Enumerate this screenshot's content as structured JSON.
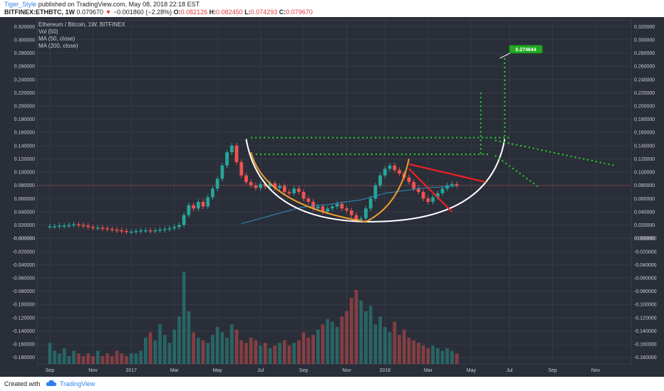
{
  "header": {
    "user": "Tiger_Style",
    "published": "published on TradingView.com, May 08, 2018 22:18 EST",
    "symbol": "BITFINEX:ETHBTC, 1W",
    "last": "0.079670",
    "change": "−0.001860 (−2.28%)",
    "o_label": "O:",
    "o_val": "0.082126",
    "h_label": "H:",
    "h_val": "0.082450",
    "l_label": "L:",
    "l_val": "0.074293",
    "c_label": "C:",
    "c_val": "0.079670"
  },
  "chart_info": {
    "title": "Ethereum / Bitcoin, 1W, BITFINEX",
    "vol": "Vol (50)",
    "ma50": "MA (50, close)",
    "ma200": "MA (200, close)"
  },
  "footer": {
    "created": "Created with",
    "brand": "TradingView"
  },
  "colors": {
    "background": "#2a2e39",
    "up": "#26a69a",
    "down": "#ef5350",
    "cup": "#ffffff",
    "arc": "#f0a030",
    "wedge": "#ff2020",
    "guide": "#22dd22",
    "ma": "#2f8fbf"
  },
  "chart_data": {
    "type": "candlestick",
    "ylim": [
      -0.19,
      0.33
    ],
    "y_ticks": [
      "0.320000",
      "0.300000",
      "0.280000",
      "0.260000",
      "0.240000",
      "0.220000",
      "0.200000",
      "0.180000",
      "0.160000",
      "0.140000",
      "0.120000",
      "0.100000",
      "0.080000",
      "0.060000",
      "0.040000",
      "0.020000",
      "0.000000",
      "-0.000000",
      "-0.020000",
      "-0.040000",
      "-0.060000",
      "-0.080000",
      "-0.100000",
      "-0.120000",
      "-0.140000",
      "-0.160000",
      "-0.180000"
    ],
    "y_tick_values": [
      0.32,
      0.3,
      0.28,
      0.26,
      0.24,
      0.22,
      0.2,
      0.18,
      0.16,
      0.14,
      0.12,
      0.1,
      0.08,
      0.06,
      0.04,
      0.02,
      0.0,
      -0.0,
      -0.02,
      -0.04,
      -0.06,
      -0.08,
      -0.1,
      -0.12,
      -0.14,
      -0.16,
      -0.18
    ],
    "x_ticks": [
      "Sep",
      "Nov",
      "2017",
      "Mar",
      "May",
      "Jul",
      "Sep",
      "Nov",
      "2018",
      "Mar",
      "May",
      "Jul",
      "Sep",
      "Nov"
    ],
    "x_tick_weeks": [
      0,
      9,
      17,
      26,
      35,
      44,
      53,
      62,
      70,
      79,
      88,
      96,
      105,
      114
    ],
    "current_price": 0.07967,
    "target_label": "0.274644",
    "target_value": 0.274644,
    "candles_close": [
      0.018,
      0.018,
      0.019,
      0.019,
      0.02,
      0.021,
      0.02,
      0.019,
      0.017,
      0.016,
      0.016,
      0.015,
      0.014,
      0.013,
      0.012,
      0.011,
      0.01,
      0.01,
      0.011,
      0.012,
      0.012,
      0.011,
      0.012,
      0.013,
      0.014,
      0.015,
      0.017,
      0.02,
      0.035,
      0.05,
      0.045,
      0.055,
      0.048,
      0.062,
      0.075,
      0.09,
      0.11,
      0.13,
      0.14,
      0.115,
      0.095,
      0.085,
      0.08,
      0.076,
      0.082,
      0.078,
      0.083,
      0.076,
      0.079,
      0.07,
      0.068,
      0.075,
      0.07,
      0.06,
      0.055,
      0.045,
      0.048,
      0.04,
      0.045,
      0.048,
      0.052,
      0.045,
      0.042,
      0.035,
      0.028,
      0.03,
      0.045,
      0.06,
      0.08,
      0.095,
      0.105,
      0.11,
      0.103,
      0.098,
      0.092,
      0.085,
      0.075,
      0.07,
      0.06,
      0.055,
      0.062,
      0.068,
      0.075,
      0.08,
      0.082,
      0.08
    ],
    "volume": [
      0.08,
      0.05,
      0.04,
      0.06,
      0.03,
      0.05,
      0.04,
      0.03,
      0.04,
      0.03,
      0.05,
      0.03,
      0.04,
      0.03,
      0.05,
      0.04,
      0.03,
      0.04,
      0.04,
      0.05,
      0.1,
      0.12,
      0.09,
      0.15,
      0.11,
      0.08,
      0.13,
      0.18,
      0.35,
      0.2,
      0.12,
      0.1,
      0.09,
      0.08,
      0.11,
      0.14,
      0.12,
      0.1,
      0.15,
      0.13,
      0.09,
      0.08,
      0.1,
      0.09,
      0.07,
      0.08,
      0.06,
      0.07,
      0.08,
      0.09,
      0.07,
      0.08,
      0.09,
      0.12,
      0.1,
      0.11,
      0.13,
      0.15,
      0.17,
      0.16,
      0.14,
      0.18,
      0.2,
      0.25,
      0.28,
      0.24,
      0.2,
      0.22,
      0.15,
      0.18,
      0.14,
      0.12,
      0.16,
      0.11,
      0.13,
      0.1,
      0.09,
      0.08,
      0.07,
      0.06,
      0.07,
      0.06,
      0.05,
      0.06,
      0.05,
      0.04
    ],
    "ma50": [
      null,
      null,
      null,
      null,
      null,
      null,
      null,
      null,
      null,
      null,
      null,
      null,
      null,
      null,
      null,
      null,
      null,
      null,
      null,
      null,
      null,
      null,
      null,
      null,
      null,
      null,
      null,
      null,
      null,
      null,
      null,
      null,
      null,
      null,
      null,
      null,
      null,
      null,
      null,
      null,
      0.022,
      0.024,
      0.026,
      0.028,
      0.03,
      0.032,
      0.034,
      0.036,
      0.038,
      0.04,
      0.042,
      0.044,
      0.046,
      0.047,
      0.048,
      0.049,
      0.05,
      0.05,
      0.051,
      0.052,
      0.053,
      0.054,
      0.055,
      0.056,
      0.057,
      0.058,
      0.06,
      0.062,
      0.064,
      0.066,
      0.068,
      0.069,
      0.07,
      0.071,
      0.072,
      0.073,
      0.074,
      0.075,
      0.076,
      0.076,
      0.077,
      0.077,
      0.078,
      0.078,
      0.079,
      0.079
    ]
  }
}
